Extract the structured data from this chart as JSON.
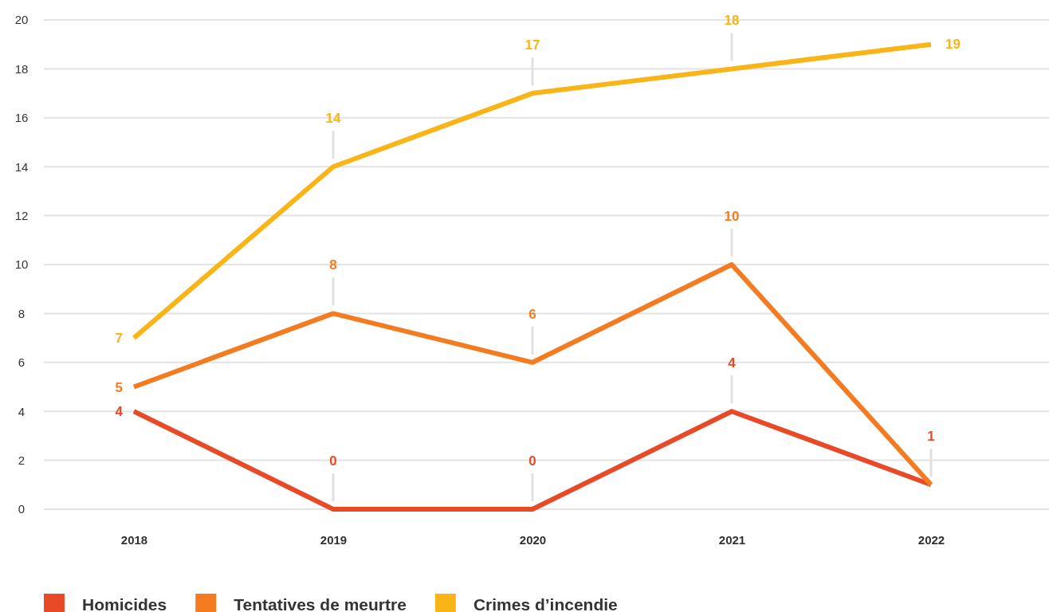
{
  "chart_data": {
    "type": "line",
    "categories": [
      "2018",
      "2019",
      "2020",
      "2021",
      "2022"
    ],
    "series": [
      {
        "name": "Homicides",
        "color": "#e84a27",
        "values": [
          4,
          0,
          0,
          4,
          1
        ],
        "value_labels": [
          "4",
          "0",
          "0",
          "4",
          "1"
        ]
      },
      {
        "name": "Tentatives de meurtre",
        "color": "#f47b20",
        "values": [
          5,
          8,
          6,
          10,
          1
        ],
        "value_labels": [
          "5",
          "8",
          "6",
          "10",
          null
        ]
      },
      {
        "name": "Crimes d’incendie",
        "color": "#f9b518",
        "values": [
          7,
          14,
          17,
          18,
          19
        ],
        "value_labels": [
          "7",
          "14",
          "17",
          "18",
          "19"
        ]
      }
    ],
    "ylim": [
      0,
      20
    ],
    "yticks": [
      0,
      2,
      4,
      6,
      8,
      10,
      12,
      14,
      16,
      18,
      20
    ],
    "grid": "y",
    "legend": "bottom left",
    "marker": "none",
    "line_style": "solid"
  }
}
